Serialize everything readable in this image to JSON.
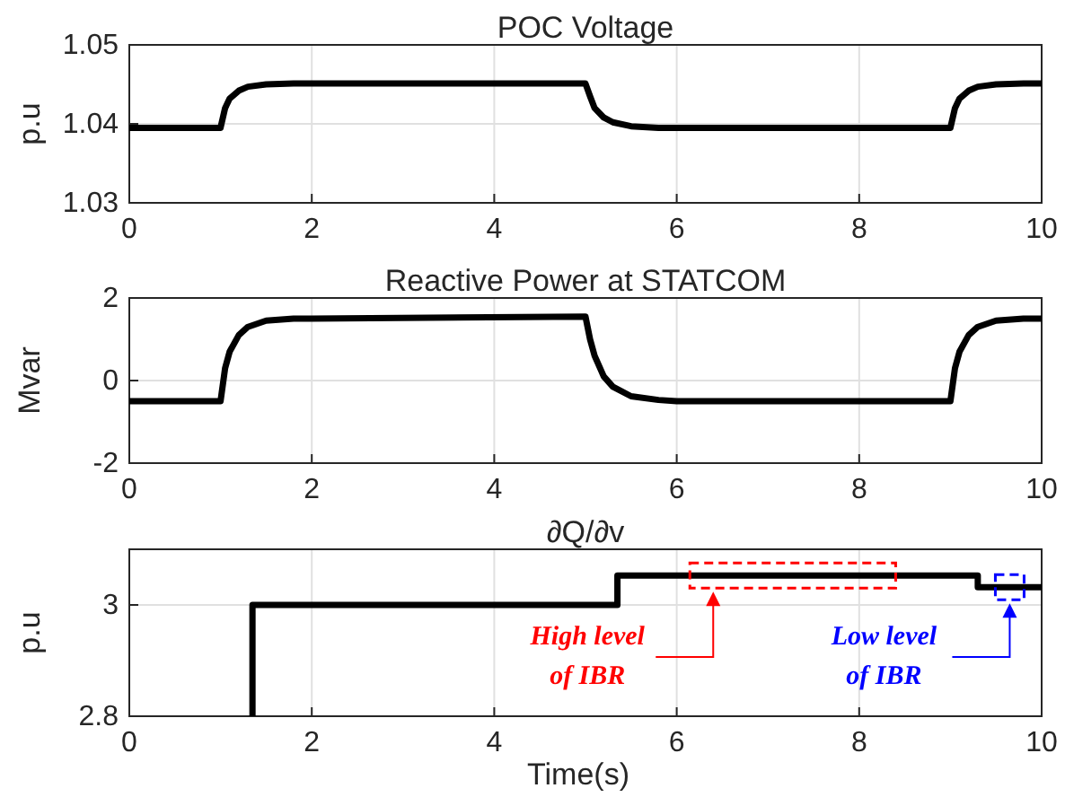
{
  "chart_data": [
    {
      "type": "line",
      "title": "POC Voltage",
      "ylabel": "p.u",
      "x": [
        0,
        1,
        1.05,
        1.1,
        1.2,
        1.3,
        1.5,
        1.8,
        2,
        5,
        5.05,
        5.1,
        5.2,
        5.3,
        5.5,
        5.8,
        6,
        9,
        9.05,
        9.1,
        9.2,
        9.3,
        9.5,
        9.8,
        10
      ],
      "xlim": [
        0,
        10
      ],
      "xticks": [
        0,
        2,
        4,
        6,
        8,
        10
      ],
      "ylim": [
        1.03,
        1.05
      ],
      "yticks": [
        1.03,
        1.04,
        1.05
      ],
      "grid": true,
      "series": [
        {
          "color": "#000000",
          "values": [
            1.0395,
            1.0395,
            1.042,
            1.0432,
            1.0442,
            1.0447,
            1.045,
            1.0451,
            1.0451,
            1.0451,
            1.0435,
            1.042,
            1.0408,
            1.0402,
            1.0397,
            1.0395,
            1.0395,
            1.0395,
            1.042,
            1.0432,
            1.0442,
            1.0447,
            1.045,
            1.0451,
            1.0451
          ]
        }
      ]
    },
    {
      "type": "line",
      "title": "Reactive Power at STATCOM",
      "ylabel": "Mvar",
      "x": [
        0,
        1,
        1.05,
        1.1,
        1.2,
        1.3,
        1.5,
        1.8,
        2,
        5,
        5.05,
        5.1,
        5.2,
        5.3,
        5.5,
        5.8,
        6,
        9,
        9.05,
        9.1,
        9.2,
        9.3,
        9.5,
        9.8,
        10
      ],
      "xlim": [
        0,
        10
      ],
      "xticks": [
        0,
        2,
        4,
        6,
        8,
        10
      ],
      "ylim": [
        -2,
        2
      ],
      "yticks": [
        -2,
        0,
        2
      ],
      "grid": true,
      "series": [
        {
          "color": "#000000",
          "values": [
            -0.5,
            -0.5,
            0.3,
            0.7,
            1.1,
            1.3,
            1.45,
            1.5,
            1.5,
            1.55,
            1.0,
            0.6,
            0.1,
            -0.15,
            -0.38,
            -0.47,
            -0.5,
            -0.5,
            0.3,
            0.7,
            1.1,
            1.3,
            1.45,
            1.5,
            1.5
          ]
        }
      ]
    },
    {
      "type": "line",
      "title": "∂Q/∂v",
      "ylabel": "p.u",
      "xlabel": "Time(s)",
      "x": [
        1.35,
        1.35,
        5.35,
        5.35,
        9.3,
        9.3,
        10
      ],
      "xlim": [
        0,
        10
      ],
      "xticks": [
        0,
        2,
        4,
        6,
        8,
        10
      ],
      "ylim": [
        2.8,
        3.1
      ],
      "yticks": [
        2.8,
        3
      ],
      "grid": true,
      "series": [
        {
          "color": "#000000",
          "values": [
            2.8,
            3,
            3,
            3.053,
            3.053,
            3.032,
            3.032
          ]
        }
      ],
      "annotations": [
        "High level of IBR",
        "Low level of IBR"
      ]
    }
  ]
}
